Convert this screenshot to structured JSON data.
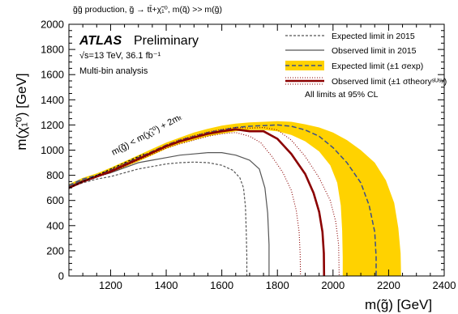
{
  "header": "g̃g̃ production, g̃ → tt̄+χ̃₁⁰, m(q̃) >> m(g̃)",
  "atlas_label": "ATLAS",
  "atlas_sub": "Preliminary",
  "energy_label": "√s=13 TeV, 36.1 fb⁻¹",
  "analysis_label": "Multi-bin analysis",
  "cl_note": "All limits at 95% CL",
  "kinematic_label": "m(g̃) < m(χ̃₁⁰) + 2mₜ",
  "colors": {
    "band": "#ffd200",
    "expected": "#3a4e8c",
    "observed": "#8b0000",
    "expected2015": "#555555",
    "observed2015": "#555555"
  },
  "chart_data": {
    "type": "line",
    "xlabel": "m(g̃) [GeV]",
    "ylabel": "m(χ̃₁⁰) [GeV]",
    "xlim": [
      1050,
      2400
    ],
    "ylim": [
      0,
      2000
    ],
    "xticks": [
      1200,
      1400,
      1600,
      1800,
      2000,
      2200,
      2400
    ],
    "yticks": [
      0,
      200,
      400,
      600,
      800,
      1000,
      1200,
      1400,
      1600,
      1800,
      2000
    ],
    "legend_position": "top-right",
    "legend": [
      {
        "label": "Expected limit in 2015",
        "style": "expected2015"
      },
      {
        "label": "Observed limit in 2015",
        "style": "observed2015"
      },
      {
        "label": "Expected limit (±1 σexp)",
        "style": "expected-band"
      },
      {
        "label": "Observed limit (±1 σtheoryˢᵁˢʸ)",
        "style": "observed-band"
      }
    ],
    "series": [
      {
        "name": "Expected limit in 2015",
        "style": "expected2015",
        "points": [
          [
            1050,
            700
          ],
          [
            1100,
            740
          ],
          [
            1150,
            770
          ],
          [
            1200,
            790
          ],
          [
            1250,
            820
          ],
          [
            1300,
            850
          ],
          [
            1350,
            870
          ],
          [
            1400,
            890
          ],
          [
            1450,
            900
          ],
          [
            1500,
            905
          ],
          [
            1550,
            900
          ],
          [
            1600,
            880
          ],
          [
            1640,
            840
          ],
          [
            1665,
            780
          ],
          [
            1678,
            700
          ],
          [
            1685,
            550
          ],
          [
            1688,
            350
          ],
          [
            1690,
            150
          ],
          [
            1690,
            0
          ]
        ]
      },
      {
        "name": "Observed limit in 2015",
        "style": "observed2015",
        "points": [
          [
            1050,
            710
          ],
          [
            1100,
            760
          ],
          [
            1150,
            790
          ],
          [
            1200,
            820
          ],
          [
            1250,
            860
          ],
          [
            1300,
            900
          ],
          [
            1350,
            920
          ],
          [
            1400,
            940
          ],
          [
            1450,
            960
          ],
          [
            1500,
            970
          ],
          [
            1550,
            980
          ],
          [
            1600,
            980
          ],
          [
            1650,
            960
          ],
          [
            1700,
            920
          ],
          [
            1735,
            850
          ],
          [
            1755,
            700
          ],
          [
            1765,
            500
          ],
          [
            1770,
            250
          ],
          [
            1770,
            0
          ]
        ]
      },
      {
        "name": "Expected limit (±1 σexp)",
        "style": "expected",
        "points": [
          [
            1050,
            720
          ],
          [
            1100,
            770
          ],
          [
            1150,
            800
          ],
          [
            1200,
            840
          ],
          [
            1250,
            890
          ],
          [
            1300,
            940
          ],
          [
            1350,
            990
          ],
          [
            1400,
            1040
          ],
          [
            1450,
            1080
          ],
          [
            1500,
            1110
          ],
          [
            1550,
            1140
          ],
          [
            1600,
            1160
          ],
          [
            1650,
            1180
          ],
          [
            1700,
            1190
          ],
          [
            1750,
            1195
          ],
          [
            1800,
            1200
          ],
          [
            1850,
            1190
          ],
          [
            1900,
            1160
          ],
          [
            1950,
            1110
          ],
          [
            2000,
            1020
          ],
          [
            2050,
            900
          ],
          [
            2100,
            740
          ],
          [
            2130,
            560
          ],
          [
            2150,
            350
          ],
          [
            2155,
            150
          ],
          [
            2155,
            0
          ]
        ]
      },
      {
        "name": "Expected band upper",
        "style": "band-edge",
        "points": [
          [
            1050,
            730
          ],
          [
            1100,
            780
          ],
          [
            1150,
            815
          ],
          [
            1200,
            860
          ],
          [
            1250,
            910
          ],
          [
            1300,
            960
          ],
          [
            1350,
            1010
          ],
          [
            1400,
            1060
          ],
          [
            1450,
            1100
          ],
          [
            1500,
            1140
          ],
          [
            1550,
            1170
          ],
          [
            1600,
            1195
          ],
          [
            1650,
            1210
          ],
          [
            1700,
            1220
          ],
          [
            1750,
            1225
          ],
          [
            1800,
            1230
          ],
          [
            1850,
            1225
          ],
          [
            1900,
            1205
          ],
          [
            1950,
            1180
          ],
          [
            2000,
            1140
          ],
          [
            2050,
            1080
          ],
          [
            2100,
            1000
          ],
          [
            2150,
            900
          ],
          [
            2190,
            760
          ],
          [
            2220,
            580
          ],
          [
            2235,
            380
          ],
          [
            2243,
            180
          ],
          [
            2245,
            0
          ]
        ]
      },
      {
        "name": "Expected band lower",
        "style": "band-edge",
        "points": [
          [
            1050,
            705
          ],
          [
            1100,
            755
          ],
          [
            1150,
            785
          ],
          [
            1200,
            820
          ],
          [
            1250,
            865
          ],
          [
            1300,
            910
          ],
          [
            1350,
            960
          ],
          [
            1400,
            1010
          ],
          [
            1450,
            1050
          ],
          [
            1500,
            1080
          ],
          [
            1550,
            1110
          ],
          [
            1600,
            1130
          ],
          [
            1650,
            1150
          ],
          [
            1700,
            1160
          ],
          [
            1750,
            1160
          ],
          [
            1800,
            1150
          ],
          [
            1850,
            1120
          ],
          [
            1900,
            1070
          ],
          [
            1950,
            990
          ],
          [
            1990,
            880
          ],
          [
            2015,
            740
          ],
          [
            2028,
            560
          ],
          [
            2033,
            360
          ],
          [
            2035,
            150
          ],
          [
            2035,
            0
          ]
        ]
      },
      {
        "name": "Observed limit (±1 σtheory)",
        "style": "observed",
        "points": [
          [
            1050,
            700
          ],
          [
            1100,
            750
          ],
          [
            1150,
            790
          ],
          [
            1200,
            830
          ],
          [
            1250,
            880
          ],
          [
            1300,
            930
          ],
          [
            1350,
            980
          ],
          [
            1400,
            1030
          ],
          [
            1450,
            1070
          ],
          [
            1500,
            1100
          ],
          [
            1550,
            1130
          ],
          [
            1600,
            1150
          ],
          [
            1650,
            1165
          ],
          [
            1700,
            1150
          ],
          [
            1750,
            1150
          ],
          [
            1800,
            1090
          ],
          [
            1850,
            970
          ],
          [
            1900,
            810
          ],
          [
            1930,
            660
          ],
          [
            1950,
            510
          ],
          [
            1962,
            350
          ],
          [
            1967,
            180
          ],
          [
            1968,
            0
          ]
        ]
      },
      {
        "name": "Observed theory up",
        "style": "observed-dotted",
        "points": [
          [
            1050,
            705
          ],
          [
            1100,
            755
          ],
          [
            1150,
            795
          ],
          [
            1200,
            840
          ],
          [
            1250,
            890
          ],
          [
            1300,
            940
          ],
          [
            1350,
            990
          ],
          [
            1400,
            1040
          ],
          [
            1450,
            1085
          ],
          [
            1500,
            1115
          ],
          [
            1550,
            1145
          ],
          [
            1600,
            1165
          ],
          [
            1650,
            1180
          ],
          [
            1700,
            1175
          ],
          [
            1750,
            1180
          ],
          [
            1800,
            1160
          ],
          [
            1850,
            1080
          ],
          [
            1900,
            950
          ],
          [
            1950,
            780
          ],
          [
            1990,
            600
          ],
          [
            2010,
            430
          ],
          [
            2020,
            250
          ],
          [
            2022,
            0
          ]
        ]
      },
      {
        "name": "Observed theory down",
        "style": "observed-dotted",
        "points": [
          [
            1050,
            695
          ],
          [
            1100,
            745
          ],
          [
            1150,
            785
          ],
          [
            1200,
            820
          ],
          [
            1250,
            870
          ],
          [
            1300,
            920
          ],
          [
            1350,
            965
          ],
          [
            1400,
            1015
          ],
          [
            1450,
            1050
          ],
          [
            1500,
            1080
          ],
          [
            1550,
            1110
          ],
          [
            1600,
            1130
          ],
          [
            1650,
            1140
          ],
          [
            1700,
            1110
          ],
          [
            1740,
            1060
          ],
          [
            1780,
            950
          ],
          [
            1820,
            820
          ],
          [
            1850,
            680
          ],
          [
            1868,
            520
          ],
          [
            1878,
            350
          ],
          [
            1882,
            170
          ],
          [
            1883,
            0
          ]
        ]
      }
    ],
    "kinematic_line": {
      "points": [
        [
          1050,
          700
        ],
        [
          1320,
          970
        ]
      ],
      "style": "dashed"
    }
  }
}
